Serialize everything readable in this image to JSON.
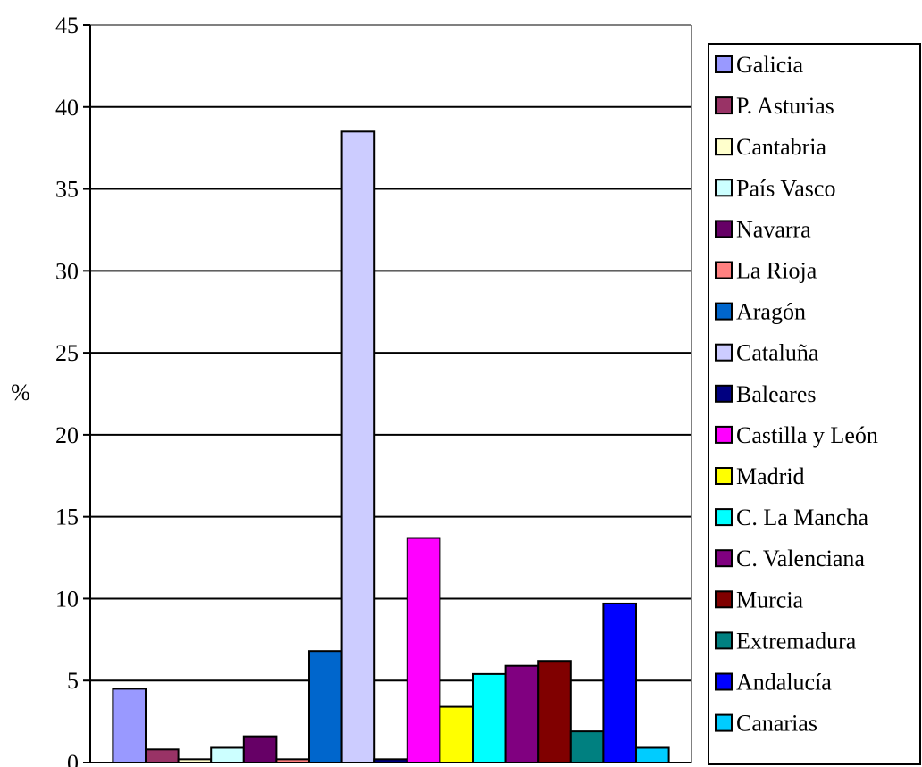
{
  "chart_data": {
    "type": "bar",
    "title": "",
    "xlabel": "",
    "ylabel": "%",
    "ylim": [
      0,
      45
    ],
    "yticks": [
      0,
      5,
      10,
      15,
      20,
      25,
      30,
      35,
      40,
      45
    ],
    "grid": "horizontal",
    "legend_position": "right",
    "categories": [
      "Galicia",
      "P. Asturias",
      "Cantabria",
      "País Vasco",
      "Navarra",
      "La Rioja",
      "Aragón",
      "Cataluña",
      "Baleares",
      "Castilla y León",
      "Madrid",
      "C. La Mancha",
      "C. Valenciana",
      "Murcia",
      "Extremadura",
      "Andalucía",
      "Canarias"
    ],
    "values": [
      4.5,
      0.8,
      0.2,
      0.9,
      1.6,
      0.2,
      6.8,
      38.5,
      0.2,
      13.7,
      3.4,
      5.4,
      5.9,
      6.2,
      1.9,
      9.7,
      0.9
    ],
    "colors": [
      "#9999FF",
      "#993366",
      "#FFFFCC",
      "#CCFFFF",
      "#660066",
      "#FF8080",
      "#0066CC",
      "#CCCCFF",
      "#000080",
      "#FF00FF",
      "#FFFF00",
      "#00FFFF",
      "#800080",
      "#800000",
      "#008080",
      "#0000FF",
      "#00CCFF"
    ]
  }
}
